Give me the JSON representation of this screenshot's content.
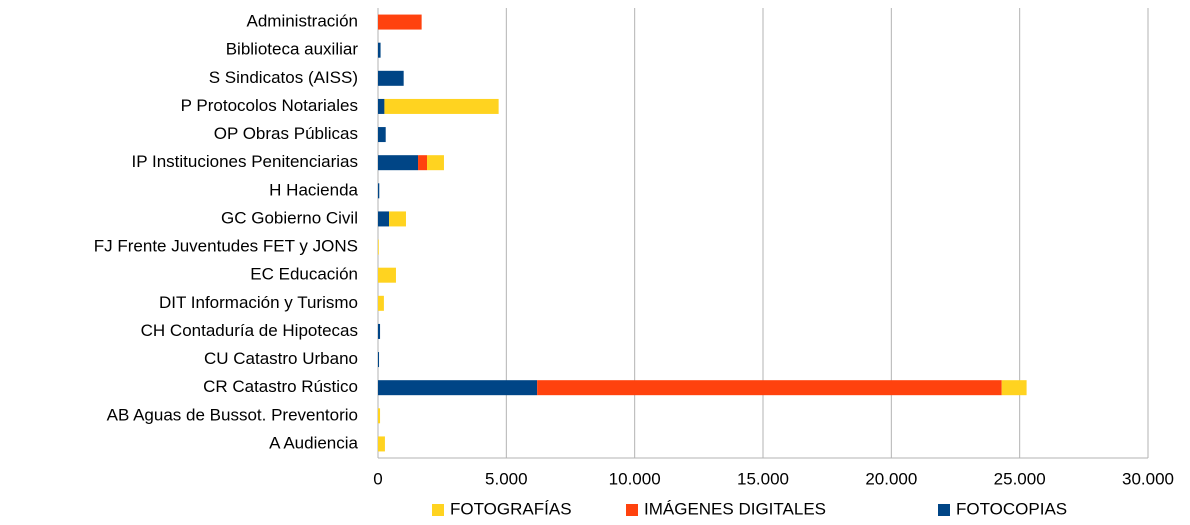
{
  "chart_data": {
    "type": "stacked_barh",
    "categories": [
      "Administración",
      "Biblioteca auxiliar",
      "S Sindicatos  (AISS)",
      "P Protocolos Notariales",
      "OP Obras Públicas",
      "IP Instituciones Penitenciarias",
      "H Hacienda",
      "GC Gobierno Civil",
      "FJ Frente Juventudes  FET y JONS",
      "EC Educación",
      "DIT Información y Turismo",
      "CH Contaduría de Hipotecas",
      "CU Catastro Urbano",
      "CR Catastro Rústico",
      "AB Aguas de Bussot. Preventorio",
      "A  Audiencia"
    ],
    "series": [
      {
        "name": "FOTOCOPIAS",
        "color": "#004586",
        "values": [
          0,
          100,
          1000,
          250,
          300,
          1560,
          50,
          430,
          0,
          0,
          0,
          80,
          40,
          6200,
          0,
          0
        ]
      },
      {
        "name": "IMÁGENES DIGITALES",
        "color": "#ff420e",
        "values": [
          1700,
          0,
          0,
          0,
          0,
          350,
          0,
          0,
          0,
          0,
          0,
          0,
          0,
          18100,
          0,
          0
        ]
      },
      {
        "name": "FOTOGRAFÍAS",
        "color": "#ffd320",
        "values": [
          0,
          0,
          0,
          4450,
          0,
          660,
          0,
          660,
          30,
          700,
          230,
          0,
          0,
          970,
          80,
          270
        ]
      }
    ],
    "xlim": [
      0,
      30000
    ],
    "xticks": [
      0,
      {
        "value": 5000,
        "label": "5.000"
      },
      {
        "value": 10000,
        "label": "10.000"
      },
      {
        "value": 15000,
        "label": "15.000"
      },
      {
        "value": 20000,
        "label": "20.000"
      },
      {
        "value": 25000,
        "label": "25.000"
      },
      {
        "value": 30000,
        "label": "30.000"
      }
    ],
    "grid": true
  }
}
